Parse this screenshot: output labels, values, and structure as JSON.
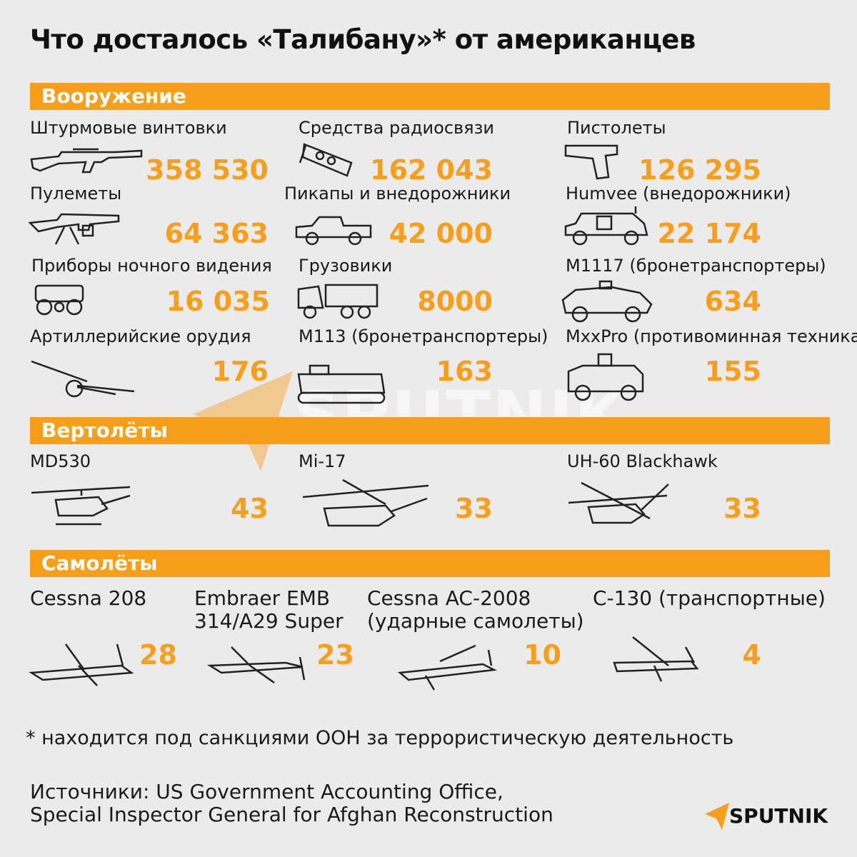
{
  "title": "Что досталось «Талибану»* от американцев",
  "sections": {
    "weapons": "Вооружение",
    "helicopters": "Вертолёты",
    "planes": "Самолёты"
  },
  "weapons": [
    {
      "label": "Штурмовые винтовки",
      "value": "358 530",
      "icon": "rifle-icon"
    },
    {
      "label": "Средства радиосвязи",
      "value": "162 043",
      "icon": "radio-icon"
    },
    {
      "label": "Пистолеты",
      "value": "126 295",
      "icon": "pistol-icon"
    },
    {
      "label": "Пулеметы",
      "value": "64 363",
      "icon": "machine-gun-icon"
    },
    {
      "label": "Пикапы и внедорожники",
      "value": "42 000",
      "icon": "pickup-icon"
    },
    {
      "label": "Humvee (внедорожники)",
      "value": "22 174",
      "icon": "humvee-icon"
    },
    {
      "label": "Приборы ночного видения",
      "value": "16 035",
      "icon": "night-vision-icon"
    },
    {
      "label": "Грузовики",
      "value": "8000",
      "icon": "truck-icon"
    },
    {
      "label": "M1117 (бронетранспортеры)",
      "value": "634",
      "icon": "armored-car-icon"
    },
    {
      "label": "Артиллерийские орудия",
      "value": "176",
      "icon": "artillery-icon"
    },
    {
      "label": "M113 (бронетранспортеры)",
      "value": "163",
      "icon": "apc-tracked-icon"
    },
    {
      "label": "MxxPro (противоминная техника)",
      "value": "155",
      "icon": "mrap-icon"
    }
  ],
  "helicopters": [
    {
      "label": "MD530",
      "value": "43",
      "icon": "helicopter-light-icon"
    },
    {
      "label": "Mi-17",
      "value": "33",
      "icon": "helicopter-transport-icon"
    },
    {
      "label": "UH-60 Blackhawk",
      "value": "33",
      "icon": "helicopter-blackhawk-icon"
    }
  ],
  "planes": [
    {
      "label1": "Cessna 208",
      "label2": "",
      "value": "28",
      "icon": "cessna-plane-icon"
    },
    {
      "label1": "Embraer EMB",
      "label2": "314/A29 Super",
      "value": "23",
      "icon": "turboprop-plane-icon"
    },
    {
      "label1": "Cessna AC-2008",
      "label2": "(ударные самолеты)",
      "value": "10",
      "icon": "attack-plane-icon"
    },
    {
      "label1": "C-130 (транспортные)",
      "label2": "",
      "value": "4",
      "icon": "cargo-plane-icon"
    }
  ],
  "footnote": "* находится под санкциями ООН за террористическую деятельность",
  "sources": {
    "line1": "Источники: US Government Accounting Office,",
    "line2": "Special Inspector General for Afghan Reconstruction"
  },
  "watermark": "SPUTNIK",
  "logo": "SPUTNIK",
  "colors": {
    "accent": "#f79e1b",
    "background": "#ebebeb",
    "text": "#111111"
  }
}
